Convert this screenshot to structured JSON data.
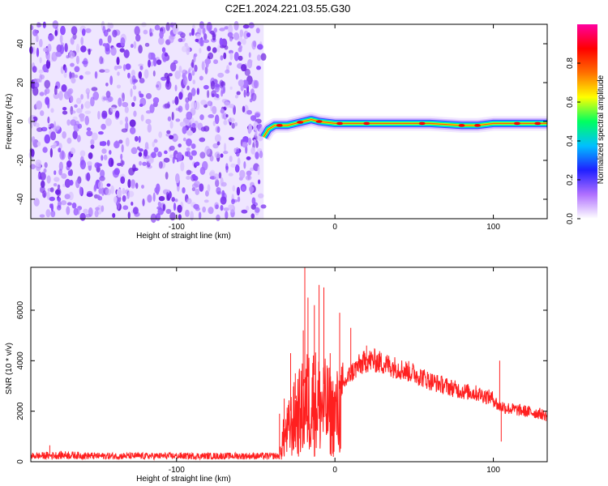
{
  "title": "C2E1.2024.221.03.55.G30",
  "chart_data": [
    {
      "type": "heatmap",
      "xlabel": "Height of straight line (km)",
      "ylabel": "Frequency (Hz)",
      "xlim": [
        -192,
        134
      ],
      "ylim": [
        -50,
        50
      ],
      "xticks": [
        -100,
        0,
        100
      ],
      "xtick_labels": [
        "-100",
        "0",
        "100"
      ],
      "yticks": [
        -40,
        -20,
        0,
        20,
        40
      ],
      "ytick_labels": [
        "-40",
        "-20",
        "0",
        "20",
        "40"
      ],
      "noise_region_x": [
        -192,
        -45
      ],
      "track_start_x": -45,
      "track": [
        [
          -45,
          -8
        ],
        [
          -42,
          -4
        ],
        [
          -38,
          -2
        ],
        [
          -30,
          -2
        ],
        [
          -20,
          0
        ],
        [
          -15,
          1
        ],
        [
          -10,
          0
        ],
        [
          0,
          -1
        ],
        [
          20,
          -1
        ],
        [
          40,
          -1
        ],
        [
          60,
          -1
        ],
        [
          80,
          -2
        ],
        [
          90,
          -2
        ],
        [
          100,
          -1
        ],
        [
          110,
          -1
        ],
        [
          120,
          -1
        ],
        [
          134,
          -1
        ]
      ],
      "track_peaks_x": [
        -35,
        -22,
        -10,
        3,
        20,
        55,
        80,
        90,
        115,
        128
      ],
      "colorbar": {
        "label": "Normalized spectral amplitude",
        "range": [
          0,
          1
        ],
        "ticks": [
          0,
          0.2,
          0.4,
          0.6,
          0.8
        ],
        "tick_labels": [
          "0.0",
          "0.2",
          "0.4",
          "0.6",
          "0.8"
        ],
        "colors": [
          "#ffffff",
          "#b070ff",
          "#2020ff",
          "#00c0ff",
          "#00ff60",
          "#ffff00",
          "#ff7000",
          "#ff0000",
          "#ff00a0"
        ]
      }
    },
    {
      "type": "line",
      "xlabel": "Height of straight line (km)",
      "ylabel": "SNR (10 * v/v)",
      "xlim": [
        -192,
        134
      ],
      "ylim": [
        0,
        7700
      ],
      "xticks": [
        -100,
        0,
        100
      ],
      "xtick_labels": [
        "-100",
        "0",
        "100"
      ],
      "yticks": [
        0,
        2000,
        4000,
        6000
      ],
      "ytick_labels": [
        "0",
        "2000",
        "4000",
        "6000"
      ],
      "color": "#ff2020",
      "envelope": [
        [
          -192,
          300
        ],
        [
          -170,
          350
        ],
        [
          -150,
          300
        ],
        [
          -100,
          300
        ],
        [
          -50,
          300
        ],
        [
          -35,
          300
        ],
        [
          -33,
          1200
        ],
        [
          -25,
          2500
        ],
        [
          -20,
          3000
        ],
        [
          -15,
          3600
        ],
        [
          -10,
          3200
        ],
        [
          -5,
          3000
        ],
        [
          -2,
          2600
        ],
        [
          0,
          2700
        ],
        [
          5,
          3000
        ],
        [
          10,
          3500
        ],
        [
          15,
          3800
        ],
        [
          20,
          4000
        ],
        [
          25,
          4000
        ],
        [
          30,
          3900
        ],
        [
          40,
          3700
        ],
        [
          50,
          3500
        ],
        [
          60,
          3200
        ],
        [
          70,
          3000
        ],
        [
          80,
          2800
        ],
        [
          90,
          2700
        ],
        [
          100,
          2500
        ],
        [
          103,
          2200
        ],
        [
          105,
          2200
        ],
        [
          110,
          2100
        ],
        [
          120,
          2000
        ],
        [
          130,
          1900
        ],
        [
          134,
          1800
        ]
      ],
      "spikes": [
        [
          -180,
          650
        ],
        [
          -35,
          1900
        ],
        [
          -32,
          2500
        ],
        [
          -28,
          4300
        ],
        [
          -25,
          3500
        ],
        [
          -20,
          5200
        ],
        [
          -19,
          7700
        ],
        [
          -17,
          6500
        ],
        [
          -13,
          6200
        ],
        [
          -10,
          7000
        ],
        [
          -7,
          6900
        ],
        [
          -3,
          4300
        ],
        [
          3,
          5900
        ],
        [
          10,
          5300
        ],
        [
          20,
          4600
        ],
        [
          104,
          4000
        ],
        [
          105,
          800
        ]
      ]
    }
  ]
}
